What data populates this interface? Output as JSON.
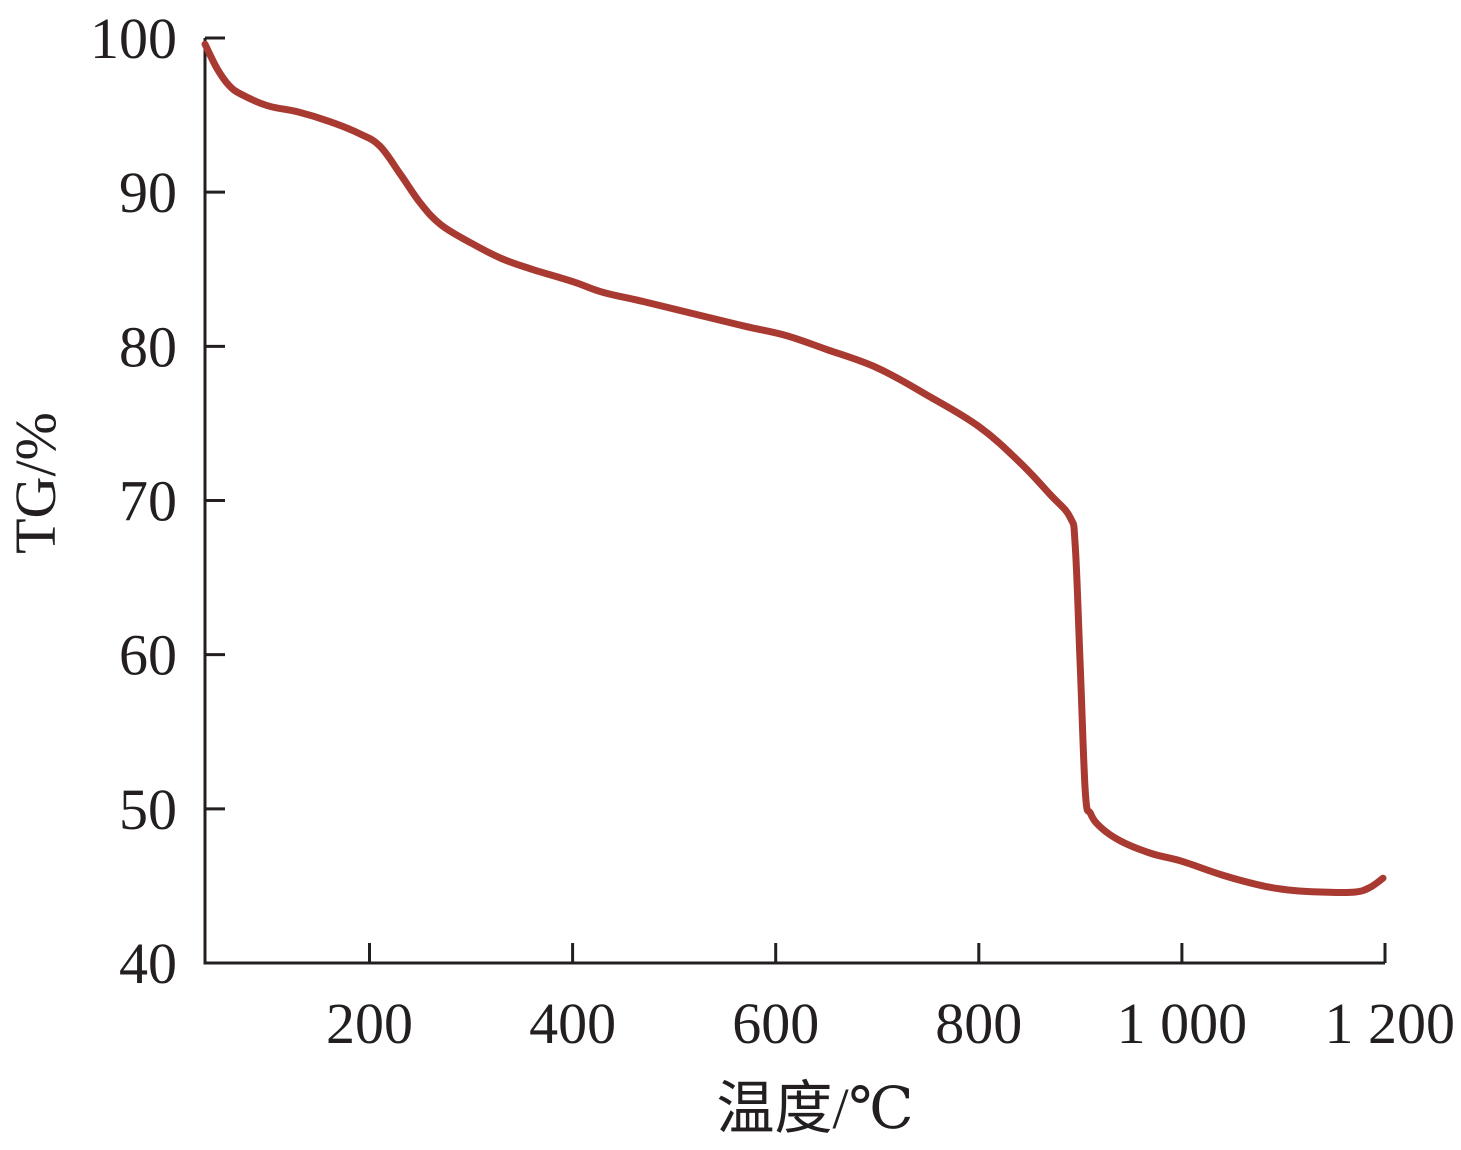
{
  "chart_data": {
    "type": "line",
    "xlabel": "温度/℃",
    "ylabel": "TG/%",
    "xlim": [
      38,
      1200
    ],
    "ylim": [
      40,
      100
    ],
    "x_ticks": [
      200,
      400,
      600,
      800,
      1000,
      1200
    ],
    "x_tick_labels": [
      "200",
      "400",
      "600",
      "800",
      "1 000",
      "1 200"
    ],
    "y_ticks": [
      40,
      50,
      60,
      70,
      80,
      90,
      100
    ],
    "y_tick_labels": [
      "40",
      "50",
      "60",
      "70",
      "80",
      "90",
      "100"
    ],
    "grid": false,
    "colors": {
      "series": "#a93a32",
      "axis": "#231f20"
    },
    "series": [
      {
        "x": [
          38,
          50,
          62,
          75,
          100,
          130,
          160,
          190,
          210,
          230,
          250,
          270,
          300,
          330,
          360,
          400,
          430,
          470,
          520,
          570,
          610,
          650,
          700,
          750,
          800,
          840,
          870,
          890,
          895,
          900,
          905,
          910,
          920,
          940,
          970,
          1000,
          1040,
          1080,
          1110,
          1140,
          1170,
          1185,
          1198
        ],
        "y": [
          99.6,
          98.0,
          96.9,
          96.3,
          95.6,
          95.2,
          94.6,
          93.8,
          93.0,
          91.2,
          89.3,
          87.9,
          86.7,
          85.7,
          85.0,
          84.2,
          83.5,
          82.9,
          82.1,
          81.3,
          80.7,
          79.8,
          78.6,
          76.8,
          74.8,
          72.5,
          70.4,
          68.9,
          67.0,
          59.0,
          51.0,
          49.7,
          48.8,
          47.9,
          47.1,
          46.6,
          45.7,
          45.0,
          44.7,
          44.6,
          44.6,
          44.9,
          45.5
        ]
      }
    ]
  }
}
